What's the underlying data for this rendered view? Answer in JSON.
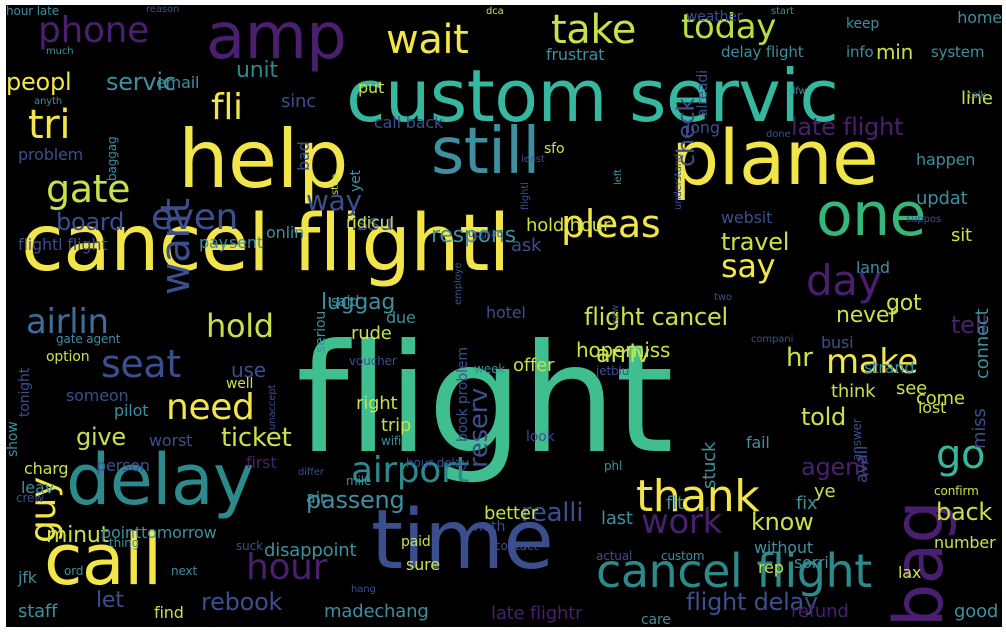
{
  "wordcloud": {
    "palette": {
      "background": "#000000",
      "purple": "#4b1f6f",
      "indigo": "#3b4f8f",
      "blue": "#3e6d9a",
      "teal": "#2d8a8c",
      "green": "#35b779",
      "lime": "#90d743",
      "yellow": "#f2e54a"
    },
    "words": [
      {
        "text": "flight",
        "color": "#3fbf8f"
      },
      {
        "text": "cancel flightl",
        "color": "#f2e54a"
      },
      {
        "text": "custom servic",
        "color": "#35b7a0"
      },
      {
        "text": "help",
        "color": "#f2e54a"
      },
      {
        "text": "plane",
        "color": "#f2e54a"
      },
      {
        "text": "still",
        "color": "#3e8fa0"
      },
      {
        "text": "delay",
        "color": "#2d8a8c"
      },
      {
        "text": "time",
        "color": "#3b4f8f"
      },
      {
        "text": "call",
        "color": "#f2e54a"
      },
      {
        "text": "amp",
        "color": "#4b1f6f"
      },
      {
        "text": "bag",
        "color": "#4b1f6f"
      },
      {
        "text": "one",
        "color": "#35b779"
      },
      {
        "text": "cancel flight",
        "color": "#2d8a8c"
      },
      {
        "text": "airport",
        "color": "#2d8a8c"
      },
      {
        "text": "thank",
        "color": "#f2e54a"
      },
      {
        "text": "phone",
        "color": "#4b1f6f"
      },
      {
        "text": "wait",
        "color": "#f2e54a"
      },
      {
        "text": "take",
        "color": "#c8e04a"
      },
      {
        "text": "today",
        "color": "#b8de3f"
      },
      {
        "text": "gate",
        "color": "#c8e04a"
      },
      {
        "text": "tri",
        "color": "#f2e54a"
      },
      {
        "text": "fli",
        "color": "#f2e54a"
      },
      {
        "text": "want",
        "color": "#3b4f8f"
      },
      {
        "text": "even",
        "color": "#3b4f8f"
      },
      {
        "text": "pleas",
        "color": "#f2e54a"
      },
      {
        "text": "say",
        "color": "#f2e54a"
      },
      {
        "text": "day",
        "color": "#4b1f6f"
      },
      {
        "text": "airlin",
        "color": "#3e6d9a"
      },
      {
        "text": "hold",
        "color": "#c8e04a"
      },
      {
        "text": "seat",
        "color": "#3b4f8f"
      },
      {
        "text": "guy",
        "color": "#f2e54a"
      },
      {
        "text": "need",
        "color": "#f2e54a"
      },
      {
        "text": "hour",
        "color": "#4b1f6f"
      },
      {
        "text": "make",
        "color": "#f2e54a"
      },
      {
        "text": "work",
        "color": "#4b1f6f"
      },
      {
        "text": "go",
        "color": "#35b7a0"
      },
      {
        "text": "ticket",
        "color": "#c8e04a"
      },
      {
        "text": "flight cancel",
        "color": "#c8e04a"
      },
      {
        "text": "late flight",
        "color": "#4b1f6f"
      },
      {
        "text": "servic",
        "color": "#3e8fa0"
      },
      {
        "text": "check",
        "color": "#3b4f8f"
      },
      {
        "text": "peopl",
        "color": "#f2e54a"
      },
      {
        "text": "unit",
        "color": "#2d8a8c"
      },
      {
        "text": "issu",
        "color": "#3b4f8f"
      },
      {
        "text": "respons",
        "color": "#3e8fa0"
      },
      {
        "text": "way",
        "color": "#3b4f8f"
      },
      {
        "text": "board",
        "color": "#3b4f8f"
      },
      {
        "text": "travel",
        "color": "#c8e04a"
      },
      {
        "text": "got",
        "color": "#c8e04a"
      },
      {
        "text": "never",
        "color": "#c8e04a"
      },
      {
        "text": "tell",
        "color": "#4b1f6f"
      },
      {
        "text": "luggag",
        "color": "#3e8fa0"
      },
      {
        "text": "reserv",
        "color": "#3b4f8f"
      },
      {
        "text": "arriv",
        "color": "#c8e04a"
      },
      {
        "text": "hr",
        "color": "#c8e04a"
      },
      {
        "text": "told",
        "color": "#c8e04a"
      },
      {
        "text": "agent",
        "color": "#4b1f6f"
      },
      {
        "text": "give",
        "color": "#c8e04a"
      },
      {
        "text": "passeng",
        "color": "#3e8fa0"
      },
      {
        "text": "realli",
        "color": "#3b4f8f"
      },
      {
        "text": "know",
        "color": "#c8e04a"
      },
      {
        "text": "back",
        "color": "#c8e04a"
      },
      {
        "text": "minut",
        "color": "#c8e04a"
      },
      {
        "text": "rebook",
        "color": "#3b4f8f"
      },
      {
        "text": "flight delay",
        "color": "#3b4f8f"
      },
      {
        "text": "let",
        "color": "#3b4f8f"
      },
      {
        "text": "min",
        "color": "#c8e04a"
      },
      {
        "text": "use",
        "color": "#3b4f8f"
      },
      {
        "text": "hopemiss",
        "color": "#c8e04a"
      },
      {
        "text": "email",
        "color": "#3e8fa0"
      },
      {
        "text": "frustrat",
        "color": "#3e8fa0"
      },
      {
        "text": "weather",
        "color": "#3b4f8f"
      },
      {
        "text": "delay flight",
        "color": "#3e8fa0"
      },
      {
        "text": "info",
        "color": "#3e8fa0"
      },
      {
        "text": "system",
        "color": "#3e8fa0"
      },
      {
        "text": "keep",
        "color": "#3e8fa0"
      },
      {
        "text": "home",
        "color": "#3e8fa0"
      },
      {
        "text": "line",
        "color": "#c8e04a"
      },
      {
        "text": "long",
        "color": "#3b4f8f"
      },
      {
        "text": "call back",
        "color": "#3b4f8f"
      },
      {
        "text": "put",
        "color": "#c8e04a"
      },
      {
        "text": "sinc",
        "color": "#3b4f8f"
      },
      {
        "text": "bad",
        "color": "#3b4f8f"
      },
      {
        "text": "problem",
        "color": "#3b4f8f"
      },
      {
        "text": "happen",
        "color": "#3e8fa0"
      },
      {
        "text": "updat",
        "color": "#3e8fa0"
      },
      {
        "text": "websit",
        "color": "#3b4f8f"
      },
      {
        "text": "sit",
        "color": "#c8e04a"
      },
      {
        "text": "ridicul",
        "color": "#c8e04a"
      },
      {
        "text": "onlin",
        "color": "#3e8fa0"
      },
      {
        "text": "pay",
        "color": "#3e8fa0"
      },
      {
        "text": "sent",
        "color": "#3e8fa0"
      },
      {
        "text": "flightl flight",
        "color": "#3b4f8f"
      },
      {
        "text": "hold hour",
        "color": "#c8e04a"
      },
      {
        "text": "ask",
        "color": "#3b4f8f"
      },
      {
        "text": "land",
        "color": "#3e8fa0"
      },
      {
        "text": "connect",
        "color": "#3e8fa0"
      },
      {
        "text": "rude",
        "color": "#c8e04a"
      },
      {
        "text": "said",
        "color": "#3e8fa0"
      },
      {
        "text": "due",
        "color": "#3e8fa0"
      },
      {
        "text": "hotel",
        "color": "#3b4f8f"
      },
      {
        "text": "option",
        "color": "#c8e04a"
      },
      {
        "text": "gate agent",
        "color": "#3e8fa0"
      },
      {
        "text": "busi",
        "color": "#3b4f8f"
      },
      {
        "text": "strand",
        "color": "#3e8fa0"
      },
      {
        "text": "see",
        "color": "#c8e04a"
      },
      {
        "text": "come",
        "color": "#c8e04a"
      },
      {
        "text": "miss",
        "color": "#3b4f8f"
      },
      {
        "text": "think",
        "color": "#c8e04a"
      },
      {
        "text": "lost",
        "color": "#c8e04a"
      },
      {
        "text": "offer",
        "color": "#c8e04a"
      },
      {
        "text": "week",
        "color": "#3e8fa0"
      },
      {
        "text": "jetblu",
        "color": "#3b4f8f"
      },
      {
        "text": "someon",
        "color": "#3b4f8f"
      },
      {
        "text": "well",
        "color": "#c8e04a"
      },
      {
        "text": "pilot",
        "color": "#3e8fa0"
      },
      {
        "text": "right",
        "color": "#c8e04a"
      },
      {
        "text": "trip",
        "color": "#c8e04a"
      },
      {
        "text": "worst",
        "color": "#3b4f8f"
      },
      {
        "text": "stuck",
        "color": "#3e8fa0"
      },
      {
        "text": "fail",
        "color": "#3e8fa0"
      },
      {
        "text": "look",
        "color": "#3b4f8f"
      },
      {
        "text": "person",
        "color": "#3b4f8f"
      },
      {
        "text": "charg",
        "color": "#c8e04a"
      },
      {
        "text": "first",
        "color": "#4b1f6f"
      },
      {
        "text": "wifi",
        "color": "#3e8fa0"
      },
      {
        "text": "differ",
        "color": "#3b4f8f"
      },
      {
        "text": "mile",
        "color": "#3e8fa0"
      },
      {
        "text": "hour delay",
        "color": "#3b4f8f"
      },
      {
        "text": "phl",
        "color": "#3e8fa0"
      },
      {
        "text": "avail",
        "color": "#3b4f8f"
      },
      {
        "text": "flt",
        "color": "#3e8fa0"
      },
      {
        "text": "ye",
        "color": "#c8e04a"
      },
      {
        "text": "fix",
        "color": "#3e8fa0"
      },
      {
        "text": "leav",
        "color": "#3e8fa0"
      },
      {
        "text": "crew",
        "color": "#3b4f8f"
      },
      {
        "text": "air",
        "color": "#3e8fa0"
      },
      {
        "text": "better",
        "color": "#c8e04a"
      },
      {
        "text": "last",
        "color": "#3e8fa0"
      },
      {
        "text": "confirm",
        "color": "#c8e04a"
      },
      {
        "text": "noth",
        "color": "#3b4f8f"
      },
      {
        "text": "pointtomorrow",
        "color": "#3e8fa0"
      },
      {
        "text": "disappoint",
        "color": "#3e8fa0"
      },
      {
        "text": "thing",
        "color": "#3e8fa0"
      },
      {
        "text": "suck",
        "color": "#3b4f8f"
      },
      {
        "text": "paid",
        "color": "#c8e04a"
      },
      {
        "text": "contact",
        "color": "#3b4f8f"
      },
      {
        "text": "actual",
        "color": "#3b4f8f"
      },
      {
        "text": "custom",
        "color": "#3e8fa0"
      },
      {
        "text": "without",
        "color": "#3e8fa0"
      },
      {
        "text": "rep",
        "color": "#c8e04a"
      },
      {
        "text": "sorri",
        "color": "#3e8fa0"
      },
      {
        "text": "number",
        "color": "#c8e04a"
      },
      {
        "text": "lax",
        "color": "#c8e04a"
      },
      {
        "text": "jfk",
        "color": "#3e8fa0"
      },
      {
        "text": "ord",
        "color": "#3e8fa0"
      },
      {
        "text": "next",
        "color": "#3e8fa0"
      },
      {
        "text": "sure",
        "color": "#c8e04a"
      },
      {
        "text": "staff",
        "color": "#3e8fa0"
      },
      {
        "text": "find",
        "color": "#c8e04a"
      },
      {
        "text": "madechang",
        "color": "#3e8fa0"
      },
      {
        "text": "late flightr",
        "color": "#4b1f6f"
      },
      {
        "text": "care",
        "color": "#3e8fa0"
      },
      {
        "text": "refund",
        "color": "#4b1f6f"
      },
      {
        "text": "good",
        "color": "#3e8fa0"
      },
      {
        "text": "hang",
        "color": "#3b4f8f"
      },
      {
        "text": "show",
        "color": "#3e8fa0"
      },
      {
        "text": "tonight",
        "color": "#3b4f8f"
      },
      {
        "text": "voucher",
        "color": "#3b4f8f"
      },
      {
        "text": "book problem",
        "color": "#3b4f8f"
      },
      {
        "text": "answer",
        "color": "#3b4f8f"
      },
      {
        "text": "anyth",
        "color": "#3e8fa0"
      },
      {
        "text": "much",
        "color": "#3e8fa0"
      },
      {
        "text": "reason",
        "color": "#3b4f8f"
      },
      {
        "text": "dca",
        "color": "#c8e04a"
      },
      {
        "text": "start",
        "color": "#3e8fa0"
      },
      {
        "text": "dfw",
        "color": "#3e8fa0"
      },
      {
        "text": "talk",
        "color": "#3e8fa0"
      },
      {
        "text": "baggag",
        "color": "#3e8fa0"
      },
      {
        "text": "yet",
        "color": "#3e8fa0"
      },
      {
        "text": "stop",
        "color": "#c8e04a"
      },
      {
        "text": "sfo",
        "color": "#c8e04a"
      },
      {
        "text": "least",
        "color": "#3b4f8f"
      },
      {
        "text": "flightl",
        "color": "#3b4f8f"
      },
      {
        "text": "understand",
        "color": "#3b4f8f"
      },
      {
        "text": "left",
        "color": "#3e8fa0"
      },
      {
        "text": "alreadi",
        "color": "#3b4f8f"
      },
      {
        "text": "seriou",
        "color": "#3e8fa0"
      },
      {
        "text": "upgrad",
        "color": "#3b4f8f"
      },
      {
        "text": "employe",
        "color": "#3b4f8f"
      },
      {
        "text": "new",
        "color": "#3b4f8f"
      },
      {
        "text": "two",
        "color": "#3b4f8f"
      },
      {
        "text": "compani",
        "color": "#3b4f8f"
      },
      {
        "text": "unaccept",
        "color": "#3b4f8f"
      },
      {
        "text": "suppos",
        "color": "#3b4f8f"
      },
      {
        "text": "done",
        "color": "#3b4f8f"
      },
      {
        "text": "hour late",
        "color": "#3e8fa0"
      }
    ]
  }
}
